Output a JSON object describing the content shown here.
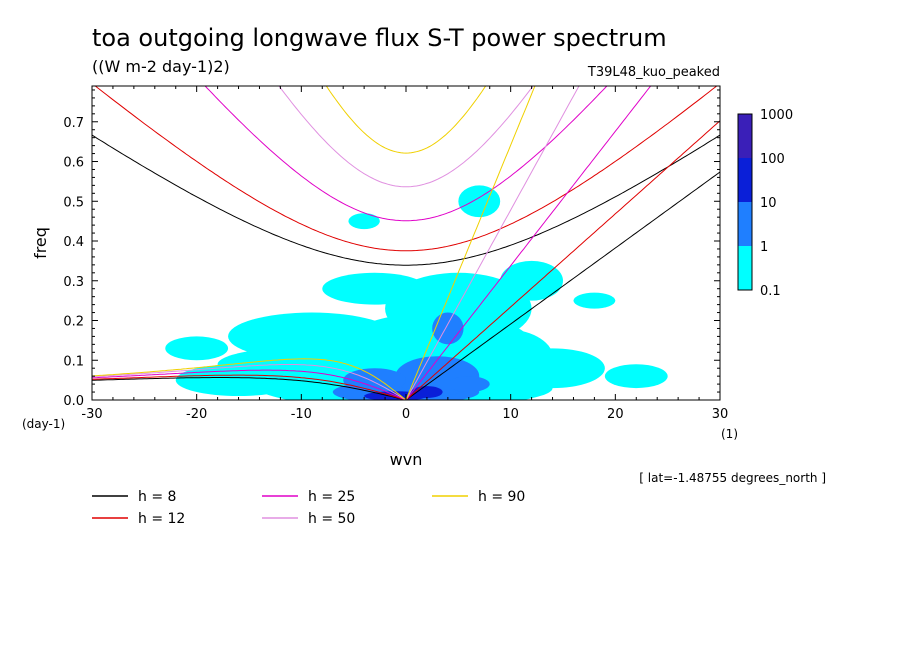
{
  "chart_data": {
    "type": "contour",
    "title": "toa outgoing longwave flux S-T power spectrum",
    "subtitle": "((W m-2 day-1)2)",
    "experiment": "T39L48_kuo_peaked",
    "xlabel": "wvn",
    "ylabel": "freq",
    "x_units": "(1)",
    "y_units": "(day-1)",
    "xlim": [
      -30,
      30
    ],
    "ylim": [
      0,
      0.79
    ],
    "x_ticks": [
      -30,
      -20,
      -10,
      0,
      10,
      20,
      30
    ],
    "x_tick_labels": [
      "-30",
      "-20",
      "-10",
      "0",
      "10",
      "20",
      "30"
    ],
    "y_ticks": [
      0,
      0.1,
      0.2,
      0.3,
      0.4,
      0.5,
      0.6,
      0.7
    ],
    "y_tick_labels": [
      "0.0",
      "0.1",
      "0.2",
      "0.3",
      "0.4",
      "0.5",
      "0.6",
      "0.7"
    ],
    "footnote": "[ lat=-1.48755 degrees_north ]",
    "colorbar": {
      "levels": [
        "0.1",
        "1",
        "10",
        "100",
        "1000"
      ],
      "colors": [
        "#00ffff",
        "#1f7fff",
        "#0a1fd8",
        "#3a1fb8"
      ]
    },
    "dispersion_curves": [
      {
        "label": "h =  8",
        "h": 8,
        "color": "#000000"
      },
      {
        "label": "h = 12",
        "h": 12,
        "color": "#e00000"
      },
      {
        "label": "h = 25",
        "h": 25,
        "color": "#e000c8"
      },
      {
        "label": "h = 50",
        "h": 50,
        "color": "#e090e0"
      },
      {
        "label": "h = 90",
        "h": 90,
        "color": "#f0d000"
      }
    ],
    "spectrum_patches": [
      {
        "level": 0,
        "x": 0,
        "y": 0.03,
        "rx": 14,
        "ry": 0.05
      },
      {
        "level": 0,
        "x": -6,
        "y": 0.09,
        "rx": 12,
        "ry": 0.05
      },
      {
        "level": 0,
        "x": 3,
        "y": 0.14,
        "rx": 9,
        "ry": 0.08
      },
      {
        "level": 0,
        "x": -9,
        "y": 0.16,
        "rx": 8,
        "ry": 0.06
      },
      {
        "level": 0,
        "x": 5,
        "y": 0.23,
        "rx": 7,
        "ry": 0.09
      },
      {
        "level": 0,
        "x": -3,
        "y": 0.28,
        "rx": 5,
        "ry": 0.04
      },
      {
        "level": 0,
        "x": 9,
        "y": 0.11,
        "rx": 5,
        "ry": 0.07
      },
      {
        "level": 0,
        "x": 14,
        "y": 0.08,
        "rx": 5,
        "ry": 0.05
      },
      {
        "level": 0,
        "x": -16,
        "y": 0.05,
        "rx": 6,
        "ry": 0.04
      },
      {
        "level": 0,
        "x": -20,
        "y": 0.13,
        "rx": 3,
        "ry": 0.03
      },
      {
        "level": 0,
        "x": 12,
        "y": 0.3,
        "rx": 3,
        "ry": 0.05
      },
      {
        "level": 0,
        "x": 7,
        "y": 0.5,
        "rx": 2,
        "ry": 0.04
      },
      {
        "level": 0,
        "x": -4,
        "y": 0.45,
        "rx": 1.5,
        "ry": 0.02
      },
      {
        "level": 0,
        "x": 18,
        "y": 0.25,
        "rx": 2,
        "ry": 0.02
      },
      {
        "level": 0,
        "x": 22,
        "y": 0.06,
        "rx": 3,
        "ry": 0.03
      },
      {
        "level": 1,
        "x": 0,
        "y": 0.02,
        "rx": 7,
        "ry": 0.03
      },
      {
        "level": 1,
        "x": 3,
        "y": 0.06,
        "rx": 4,
        "ry": 0.05
      },
      {
        "level": 1,
        "x": -3,
        "y": 0.05,
        "rx": 3,
        "ry": 0.03
      },
      {
        "level": 1,
        "x": 4,
        "y": 0.18,
        "rx": 1.5,
        "ry": 0.04
      },
      {
        "level": 1,
        "x": 6,
        "y": 0.04,
        "rx": 2,
        "ry": 0.02
      },
      {
        "level": 2,
        "x": -1,
        "y": 0.01,
        "rx": 3,
        "ry": 0.012
      },
      {
        "level": 2,
        "x": 2,
        "y": 0.02,
        "rx": 1.5,
        "ry": 0.015
      }
    ]
  }
}
